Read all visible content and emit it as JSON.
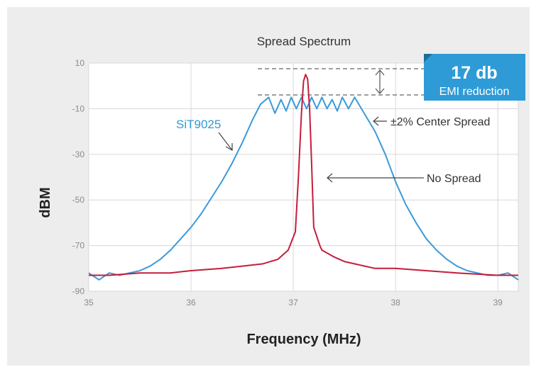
{
  "chart_data": {
    "type": "line",
    "title": "Spread Spectrum",
    "xlabel": "Frequency (MHz)",
    "ylabel": "dBM",
    "xlim": [
      35,
      39.2
    ],
    "ylim": [
      -90,
      10
    ],
    "x_ticks": [
      "35",
      "36",
      "37",
      "38",
      "39"
    ],
    "y_ticks": [
      "10",
      "-10",
      "-30",
      "-50",
      "-70",
      "-90"
    ],
    "grid": true,
    "series": [
      {
        "name": "SiT9025",
        "color": "#3a9ad9",
        "x": [
          35,
          35.1,
          35.2,
          35.3,
          35.4,
          35.5,
          35.6,
          35.7,
          35.8,
          35.9,
          36.0,
          36.1,
          36.2,
          36.3,
          36.4,
          36.5,
          36.6,
          36.68,
          36.76,
          36.82,
          36.88,
          36.93,
          36.98,
          37.03,
          37.08,
          37.13,
          37.18,
          37.23,
          37.28,
          37.33,
          37.38,
          37.43,
          37.48,
          37.54,
          37.6,
          37.68,
          37.8,
          37.9,
          38.0,
          38.1,
          38.2,
          38.3,
          38.4,
          38.5,
          38.6,
          38.7,
          38.8,
          38.9,
          39.0,
          39.1,
          39.2
        ],
        "values": [
          -82,
          -85,
          -82,
          -83,
          -82,
          -81,
          -79,
          -76,
          -72,
          -67,
          -62,
          -56,
          -49,
          -42,
          -34,
          -25,
          -15,
          -8,
          -5,
          -12,
          -6,
          -11,
          -5,
          -10,
          -5,
          -10,
          -5,
          -10,
          -5,
          -10,
          -6,
          -11,
          -5,
          -10,
          -5,
          -11,
          -20,
          -30,
          -42,
          -52,
          -60,
          -67,
          -72,
          -76,
          -79,
          -81,
          -82,
          -83,
          -83,
          -82,
          -85
        ]
      },
      {
        "name": "",
        "color": "#c41e3a",
        "x": [
          35,
          35.2,
          35.5,
          35.8,
          36.0,
          36.3,
          36.5,
          36.7,
          36.85,
          36.95,
          37.02,
          37.05,
          37.08,
          37.1,
          37.12,
          37.14,
          37.16,
          37.18,
          37.2,
          37.23,
          37.26,
          37.28,
          37.32,
          37.4,
          37.5,
          37.6,
          37.8,
          38.0,
          38.3,
          38.6,
          39.0,
          39.2
        ],
        "values": [
          -83,
          -83,
          -82,
          -82,
          -81,
          -80,
          -79,
          -78,
          -76,
          -72,
          -64,
          -40,
          -12,
          2,
          5,
          3,
          -10,
          -35,
          -62,
          -66,
          -70,
          -72,
          -73,
          -75,
          -77,
          -78,
          -80,
          -80,
          -81,
          -82,
          -83,
          -83
        ]
      }
    ]
  },
  "annotations": {
    "badge_value": "17 db",
    "badge_label": "EMI reduction",
    "center_spread": "±2% Center Spread",
    "no_spread": "No Spread"
  }
}
